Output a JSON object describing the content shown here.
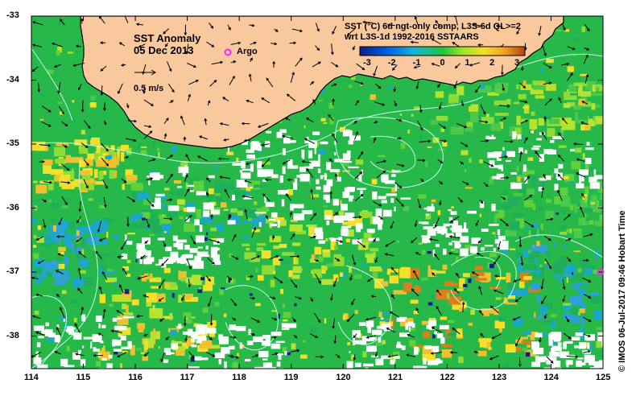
{
  "title": {
    "line1": "SST Anomaly",
    "line2": "05 Dec 2013"
  },
  "argo_legend": {
    "label": "Argo",
    "color": "#ff22ff"
  },
  "velocity_legend": {
    "label": "0.5 m/s"
  },
  "product": {
    "line1": "SST (°C) 6d ngt-only comp, L3S-6d QL>=2",
    "line2": "wrt L3S-1d 1992-2016 SSTAARS"
  },
  "colorbar": {
    "ticks": [
      "-3",
      "-2",
      "-1",
      "0",
      "1",
      "2",
      "3"
    ],
    "colors": [
      "#0b1f8c",
      "#0061e0",
      "#17b6d6",
      "#22c43a",
      "#9ee22a",
      "#f2e02a",
      "#f0a020",
      "#b5400f"
    ]
  },
  "axes": {
    "lon_ticks": [
      "114",
      "115",
      "116",
      "117",
      "118",
      "119",
      "120",
      "121",
      "122",
      "123",
      "124",
      "125"
    ],
    "lat_ticks": [
      "-33",
      "-34",
      "-35",
      "-36",
      "-37",
      "-38"
    ]
  },
  "credit": "© IMOS 06-Jul-2017 09:46 Hobart Time",
  "colors": {
    "land": "#f9c99d",
    "ocean": "#27b84a",
    "contour": "#d8ffff",
    "vector": "#000000"
  }
}
